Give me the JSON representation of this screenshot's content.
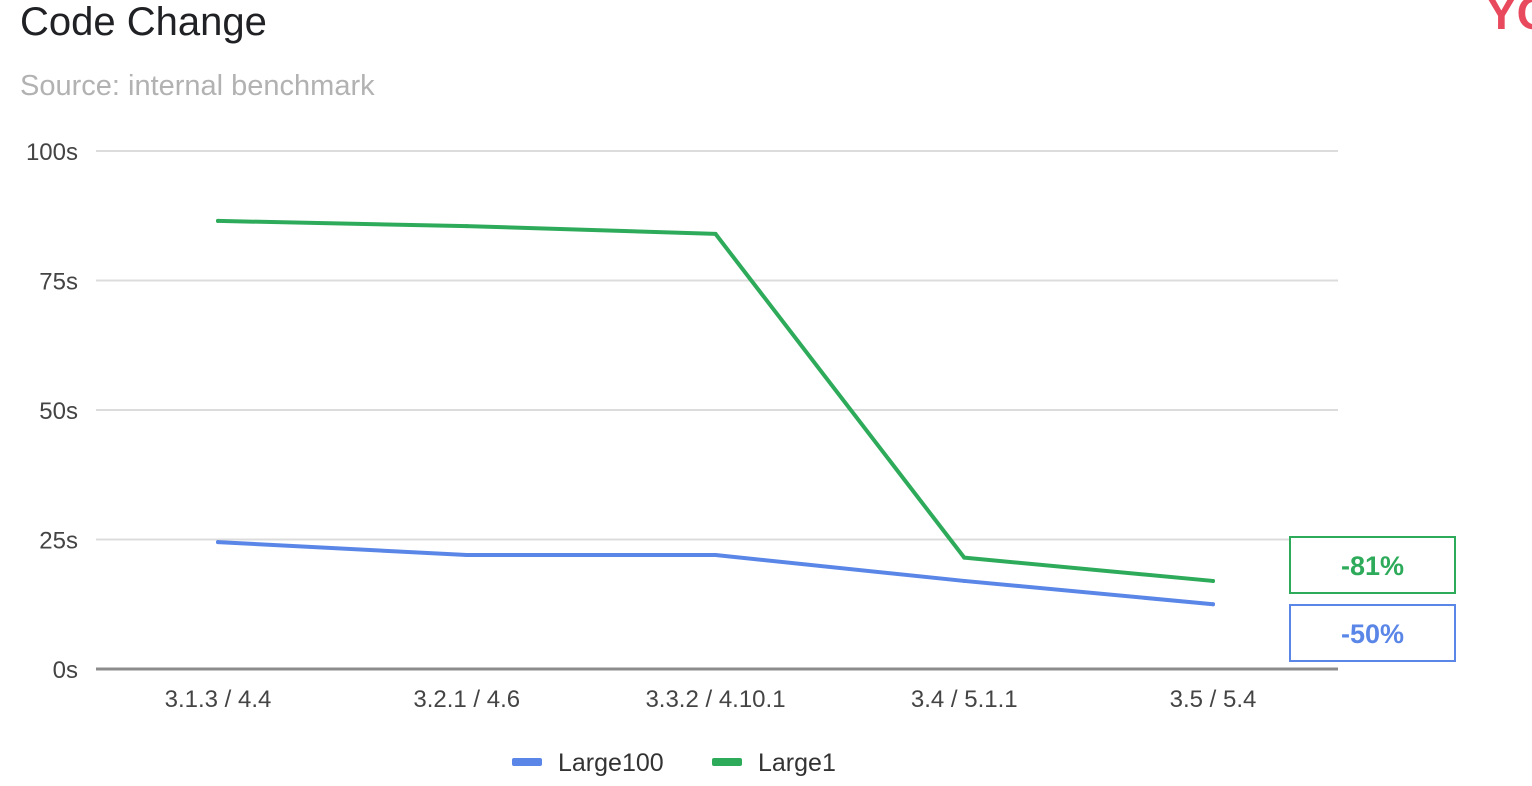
{
  "title": "Code Change",
  "subtitle": "Source: internal benchmark",
  "corner_mark": "YO",
  "chart_data": {
    "type": "line",
    "title": "Code Change",
    "subtitle": "Source: internal benchmark",
    "categories": [
      "3.1.3 / 4.4",
      "3.2.1 / 4.6",
      "3.3.2 / 4.10.1",
      "3.4 / 5.1.1",
      "3.5 / 5.4"
    ],
    "series": [
      {
        "name": "Large100",
        "color": "#5a86e8",
        "values": [
          24.5,
          22.0,
          22.0,
          17.0,
          12.5
        ]
      },
      {
        "name": "Large1",
        "color": "#2eab5a",
        "values": [
          86.5,
          85.5,
          84.0,
          21.5,
          17.0
        ]
      }
    ],
    "ylim": [
      0,
      100
    ],
    "yticks": [
      {
        "value": 0,
        "label": "0s"
      },
      {
        "value": 25,
        "label": "25s"
      },
      {
        "value": 50,
        "label": "50s"
      },
      {
        "value": 75,
        "label": "75s"
      },
      {
        "value": 100,
        "label": "100s"
      }
    ],
    "grid": true,
    "legend": "bottom",
    "annotations": [
      {
        "text": "-81%",
        "series": "Large1",
        "color": "#2eab5a"
      },
      {
        "text": "-50%",
        "series": "Large100",
        "color": "#5a86e8"
      }
    ]
  }
}
